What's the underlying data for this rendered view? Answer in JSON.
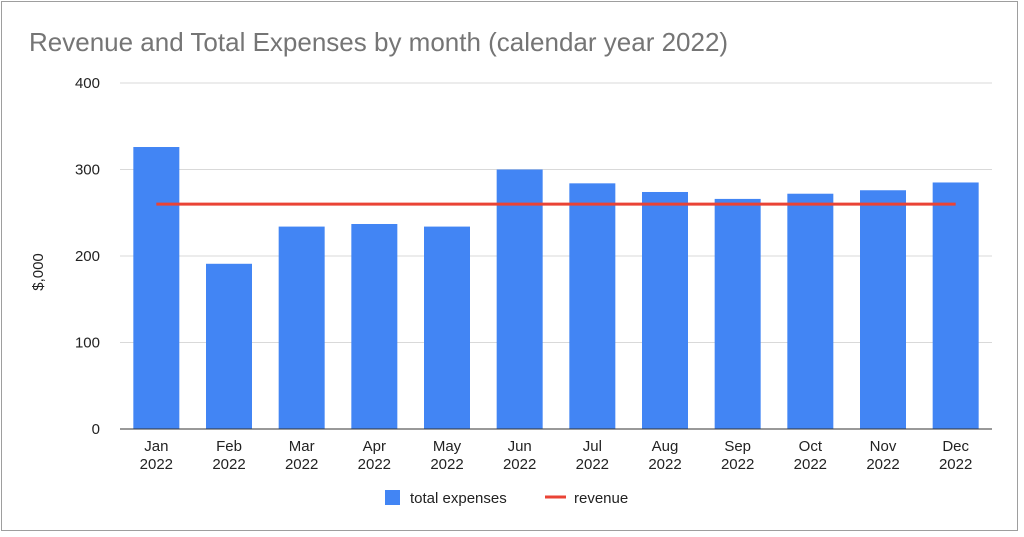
{
  "chart_data": {
    "type": "bar",
    "title": "Revenue and Total Expenses by month (calendar year 2022)",
    "xlabel": "",
    "ylabel": "$,000",
    "ylim": [
      0,
      400
    ],
    "yticks": [
      0,
      100,
      200,
      300,
      400
    ],
    "grid": true,
    "legend_position": "bottom",
    "categories": [
      [
        "Jan",
        "2022"
      ],
      [
        "Feb",
        "2022"
      ],
      [
        "Mar",
        "2022"
      ],
      [
        "Apr",
        "2022"
      ],
      [
        "May",
        "2022"
      ],
      [
        "Jun",
        "2022"
      ],
      [
        "Jul",
        "2022"
      ],
      [
        "Aug",
        "2022"
      ],
      [
        "Sep",
        "2022"
      ],
      [
        "Oct",
        "2022"
      ],
      [
        "Nov",
        "2022"
      ],
      [
        "Dec",
        "2022"
      ]
    ],
    "series": [
      {
        "name": "total expenses",
        "kind": "bar",
        "color": "#4285f4",
        "values": [
          326,
          191,
          234,
          237,
          234,
          300,
          284,
          274,
          266,
          272,
          276,
          285
        ]
      },
      {
        "name": "revenue",
        "kind": "line",
        "color": "#ea4335",
        "values": [
          260,
          260,
          260,
          260,
          260,
          260,
          260,
          260,
          260,
          260,
          260,
          260
        ]
      }
    ]
  }
}
